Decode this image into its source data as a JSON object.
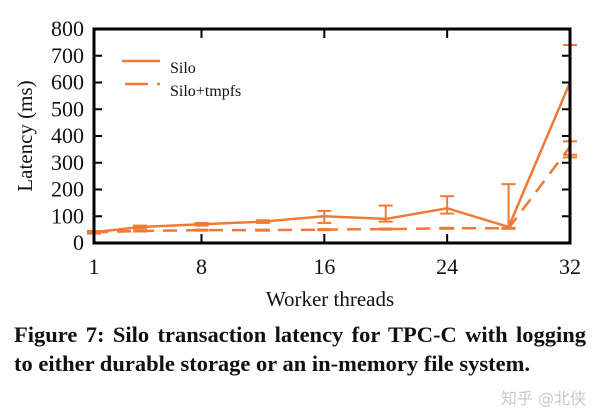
{
  "figure": {
    "caption": "Figure 7: Silo transaction latency for TPC-C with logging to either durable storage or an in-memory file system.",
    "watermark": "知乎 @北侠"
  },
  "colors": {
    "series": "#f07a35",
    "axis": "#000000",
    "text": "#111111"
  },
  "chart_data": {
    "type": "line",
    "title": "",
    "xlabel": "Worker threads",
    "ylabel": "Latency (ms)",
    "xlim": [
      1,
      32
    ],
    "ylim": [
      0,
      800
    ],
    "xticks": [
      1,
      8,
      16,
      24,
      32
    ],
    "yticks": [
      0,
      100,
      200,
      300,
      400,
      500,
      600,
      700,
      800
    ],
    "grid": false,
    "legend_position": "upper left",
    "series": [
      {
        "name": "Silo",
        "style": "solid",
        "x": [
          1,
          4,
          8,
          12,
          16,
          20,
          24,
          28,
          32
        ],
        "y": [
          40,
          60,
          70,
          80,
          100,
          90,
          130,
          60,
          600
        ],
        "error_low": [
          35,
          55,
          65,
          75,
          75,
          80,
          110,
          55,
          330
        ],
        "error_high": [
          45,
          65,
          75,
          85,
          120,
          140,
          175,
          220,
          740
        ]
      },
      {
        "name": "Silo+tmpfs",
        "style": "dashed",
        "x": [
          1,
          4,
          8,
          12,
          16,
          20,
          24,
          28,
          32
        ],
        "y": [
          40,
          45,
          48,
          48,
          50,
          52,
          55,
          55,
          360
        ],
        "error_low": [
          38,
          43,
          46,
          46,
          48,
          50,
          53,
          53,
          320
        ],
        "error_high": [
          42,
          47,
          50,
          50,
          52,
          54,
          57,
          57,
          380
        ]
      }
    ]
  }
}
